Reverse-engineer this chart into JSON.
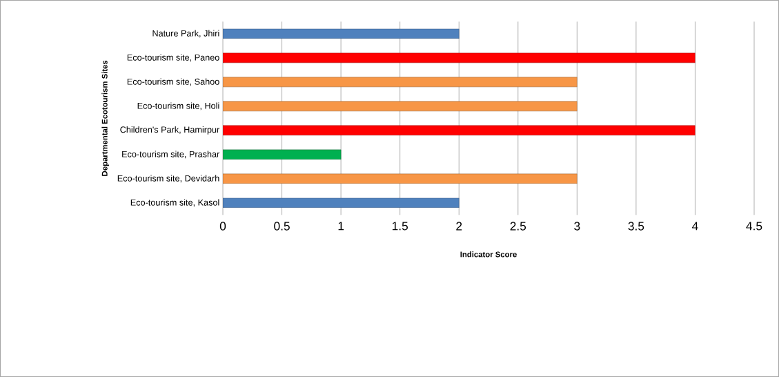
{
  "chart_data": {
    "type": "bar",
    "orientation": "horizontal",
    "xlabel": "Indicator Score",
    "ylabel": "Departmental Ecotourism Sites",
    "categories": [
      "Nature Park, Jhiri",
      "Eco-tourism site, Paneo",
      "Eco-tourism site, Sahoo",
      "Eco-tourism site, Holi",
      "Children's Park, Hamirpur",
      "Eco-tourism site, Prashar",
      "Eco-tourism site, Devidarh",
      "Eco-tourism site, Kasol"
    ],
    "values": [
      2,
      4,
      3,
      3,
      4,
      1,
      3,
      2
    ],
    "colors": [
      "#4f81bd",
      "#ff0000",
      "#f79646",
      "#f79646",
      "#ff0000",
      "#00b050",
      "#f79646",
      "#4f81bd"
    ],
    "xlim": [
      0,
      4.5
    ],
    "xticks": [
      0,
      0.5,
      1,
      1.5,
      2,
      2.5,
      3,
      3.5,
      4,
      4.5
    ],
    "grid": "x"
  }
}
